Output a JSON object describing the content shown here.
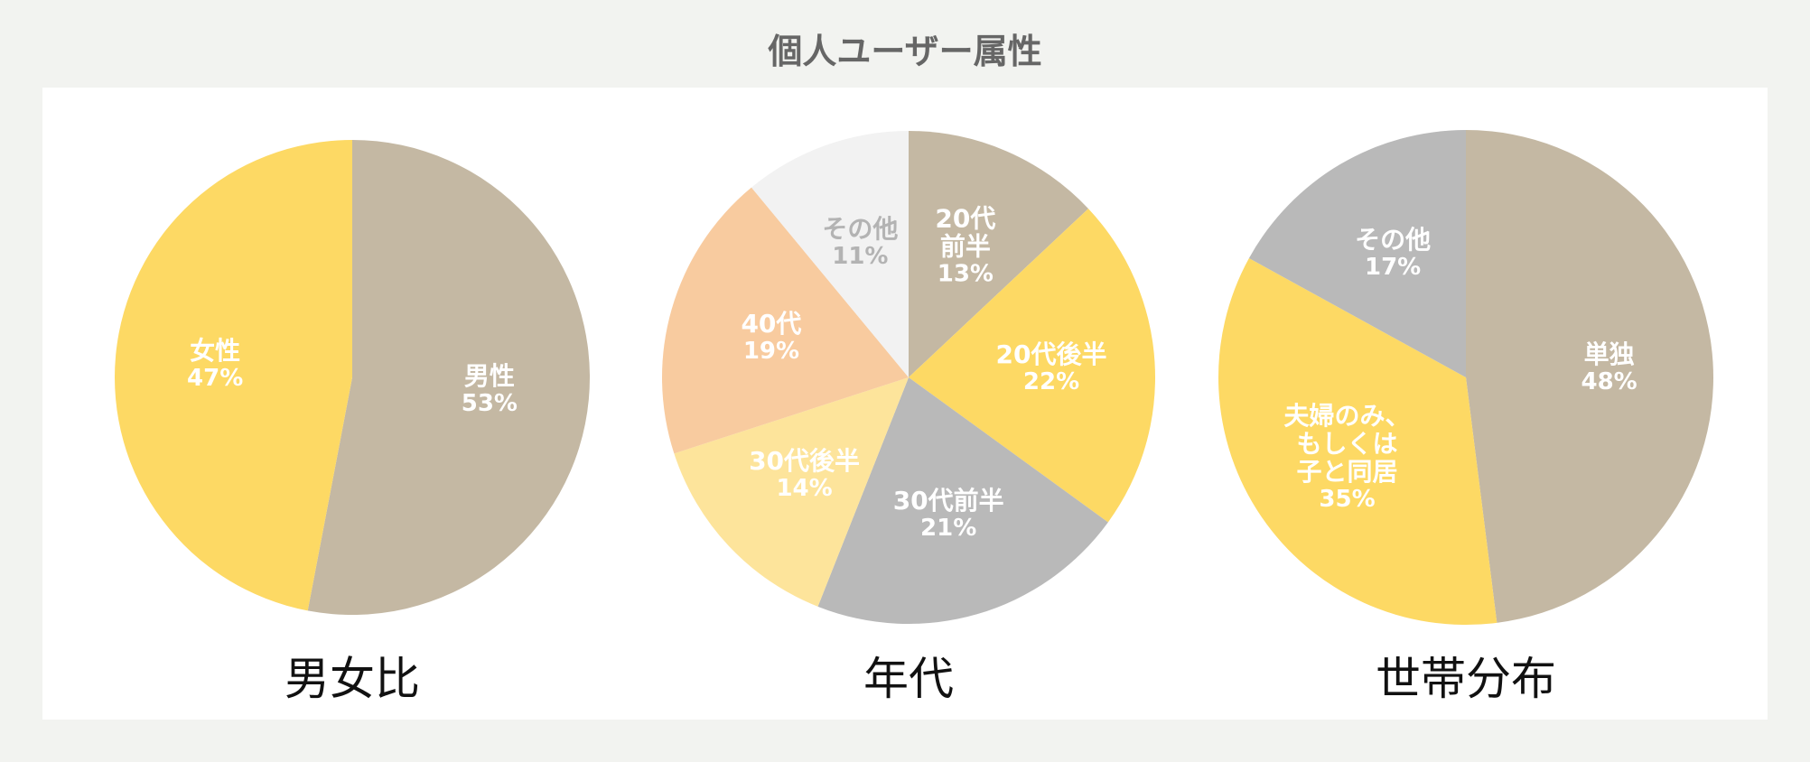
{
  "title": "個人ユーザー属性",
  "chart_data": [
    {
      "type": "pie",
      "title": "男女比",
      "categories": [
        "男性",
        "女性"
      ],
      "values": [
        53,
        47
      ],
      "value_labels": [
        "53%",
        "47%"
      ],
      "colors": [
        "#c4b8a3",
        "#fdd964"
      ],
      "label_colors": [
        "#ffffff",
        "#ffffff"
      ]
    },
    {
      "type": "pie",
      "title": "年代",
      "categories": [
        "20代\n前半",
        "20代後半",
        "30代前半",
        "30代後半",
        "40代",
        "その他"
      ],
      "values": [
        13,
        22,
        21,
        14,
        19,
        11
      ],
      "value_labels": [
        "13%",
        "22%",
        "21%",
        "14%",
        "19%",
        "11%"
      ],
      "colors": [
        "#c4b8a3",
        "#fdd964",
        "#b9b9b9",
        "#fde49b",
        "#f8cb9f",
        "#f2f2f2"
      ],
      "label_colors": [
        "#ffffff",
        "#ffffff",
        "#ffffff",
        "#ffffff",
        "#ffffff",
        "#b3b3b3"
      ]
    },
    {
      "type": "pie",
      "title": "世帯分布",
      "categories": [
        "単独",
        "夫婦のみ、\nもしくは\n子と同居",
        "その他"
      ],
      "values": [
        48,
        35,
        17
      ],
      "value_labels": [
        "48%",
        "35%",
        "17%"
      ],
      "colors": [
        "#c4b8a3",
        "#fdd964",
        "#b9b9b9"
      ],
      "label_colors": [
        "#ffffff",
        "#ffffff",
        "#ffffff"
      ]
    }
  ]
}
